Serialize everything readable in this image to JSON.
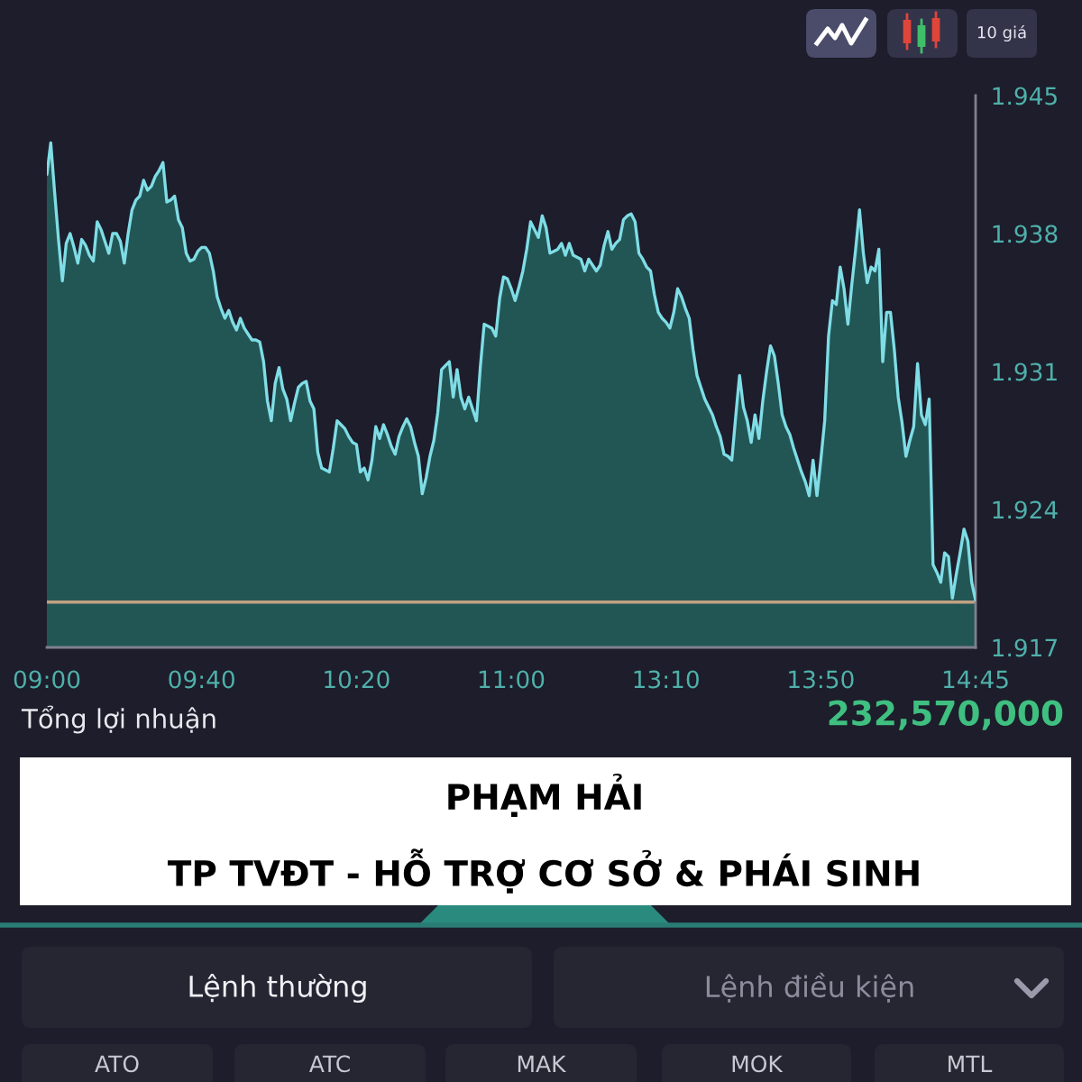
{
  "chart_data": {
    "type": "area",
    "categories": [
      "09:00",
      null,
      null,
      null,
      null,
      null,
      null,
      null,
      null,
      null,
      null,
      null,
      null,
      null,
      null,
      null,
      null,
      null,
      null,
      null,
      null,
      null,
      null,
      null,
      null,
      null,
      null,
      null,
      null,
      null,
      null,
      null,
      null,
      null,
      null,
      null,
      null,
      null,
      null,
      null,
      "09:40",
      null,
      null,
      null,
      null,
      null,
      null,
      null,
      null,
      null,
      null,
      null,
      null,
      null,
      null,
      null,
      null,
      null,
      null,
      null,
      null,
      null,
      null,
      null,
      null,
      null,
      null,
      null,
      null,
      null,
      null,
      null,
      null,
      null,
      null,
      null,
      null,
      null,
      null,
      null,
      "10:20",
      null,
      null,
      null,
      null,
      null,
      null,
      null,
      null,
      null,
      null,
      null,
      null,
      null,
      null,
      null,
      null,
      null,
      null,
      null,
      null,
      null,
      null,
      null,
      null,
      null,
      null,
      null,
      null,
      null,
      null,
      null,
      null,
      null,
      null,
      null,
      null,
      null,
      null,
      null,
      "11:00",
      null,
      null,
      null,
      null,
      null,
      null,
      null,
      null,
      null,
      null,
      null,
      null,
      null,
      null,
      null,
      null,
      null,
      null,
      null,
      null,
      null,
      null,
      null,
      null,
      null,
      null,
      null,
      null,
      null,
      null,
      null,
      null,
      null,
      null,
      null,
      null,
      null,
      null,
      null,
      "13:10",
      null,
      null,
      null,
      null,
      null,
      null,
      null,
      null,
      null,
      null,
      null,
      null,
      null,
      null,
      null,
      null,
      null,
      null,
      null,
      null,
      null,
      null,
      null,
      null,
      null,
      null,
      null,
      null,
      null,
      null,
      null,
      null,
      null,
      null,
      null,
      null,
      null,
      null,
      null,
      "13:50",
      null,
      null,
      null,
      null,
      null,
      null,
      null,
      null,
      null,
      null,
      null,
      null,
      null,
      null,
      null,
      null,
      null,
      null,
      null,
      null,
      null,
      null,
      null,
      null,
      null,
      null,
      null,
      null,
      null,
      null,
      null,
      null,
      null,
      null,
      null,
      null,
      null,
      null,
      null,
      "14:45"
    ],
    "ylim": [
      1.917,
      1.945
    ],
    "yticks": [
      1.917,
      1.924,
      1.931,
      1.938,
      1.945
    ],
    "series": [
      {
        "color": "#7fdde6",
        "values": [
          1.941,
          1.9426,
          1.9401,
          1.9377,
          1.9356,
          1.9375,
          1.938,
          1.9373,
          1.9365,
          1.9377,
          1.9374,
          1.9369,
          1.9366,
          1.9386,
          1.9382,
          1.9376,
          1.937,
          1.938,
          1.938,
          1.9376,
          1.9365,
          1.938,
          1.9392,
          1.9397,
          1.9399,
          1.9407,
          1.9402,
          1.9404,
          1.9409,
          1.9412,
          1.9416,
          1.9396,
          1.9397,
          1.9399,
          1.9387,
          1.9383,
          1.937,
          1.9366,
          1.9367,
          1.9371,
          1.9373,
          1.9373,
          1.937,
          1.9361,
          1.9348,
          1.9342,
          1.9337,
          1.9341,
          1.9335,
          1.9331,
          1.9337,
          1.9332,
          1.9329,
          1.9326,
          1.9326,
          1.9325,
          1.9315,
          1.9295,
          1.9285,
          1.9304,
          1.9312,
          1.9301,
          1.9296,
          1.9285,
          1.9294,
          1.9302,
          1.9304,
          1.9305,
          1.9295,
          1.9291,
          1.9269,
          1.9261,
          1.926,
          1.9259,
          1.9271,
          1.9285,
          1.9283,
          1.9281,
          1.9277,
          1.9274,
          1.9273,
          1.9259,
          1.9261,
          1.9255,
          1.9265,
          1.9282,
          1.9276,
          1.9283,
          1.9278,
          1.9272,
          1.9268,
          1.9277,
          1.9282,
          1.9286,
          1.9282,
          1.9274,
          1.9267,
          1.9248,
          1.9256,
          1.9267,
          1.9275,
          1.9289,
          1.9311,
          1.9313,
          1.9315,
          1.9297,
          1.9311,
          1.9297,
          1.9291,
          1.9297,
          1.9291,
          1.9285,
          1.9312,
          1.9334,
          1.9333,
          1.9332,
          1.9328,
          1.9347,
          1.9358,
          1.9357,
          1.9352,
          1.9346,
          1.9353,
          1.9361,
          1.9372,
          1.9386,
          1.9382,
          1.9378,
          1.9389,
          1.9383,
          1.937,
          1.9371,
          1.9372,
          1.9375,
          1.9369,
          1.9375,
          1.9369,
          1.9368,
          1.9367,
          1.9361,
          1.9367,
          1.9364,
          1.9361,
          1.9364,
          1.9374,
          1.9381,
          1.9372,
          1.9375,
          1.9377,
          1.9387,
          1.9389,
          1.939,
          1.9386,
          1.937,
          1.9367,
          1.9363,
          1.9361,
          1.9349,
          1.934,
          1.9337,
          1.9335,
          1.9332,
          1.934,
          1.9352,
          1.9348,
          1.9342,
          1.9337,
          1.9321,
          1.9308,
          1.9302,
          1.9296,
          1.9292,
          1.9288,
          1.9282,
          1.9277,
          1.9268,
          1.9267,
          1.9265,
          1.9287,
          1.9308,
          1.9292,
          1.9285,
          1.9274,
          1.9288,
          1.9276,
          1.9295,
          1.931,
          1.9323,
          1.9318,
          1.9304,
          1.9288,
          1.9282,
          1.9278,
          1.9271,
          1.9265,
          1.9259,
          1.9254,
          1.9247,
          1.9265,
          1.9247,
          1.9265,
          1.9285,
          1.9328,
          1.9346,
          1.9344,
          1.9363,
          1.9352,
          1.9334,
          1.9354,
          1.9372,
          1.9392,
          1.937,
          1.9355,
          1.9363,
          1.9361,
          1.9372,
          1.9315,
          1.934,
          1.934,
          1.9321,
          1.9297,
          1.9284,
          1.9267,
          1.9275,
          1.9282,
          1.9314,
          1.9288,
          1.9283,
          1.9296,
          1.9212,
          1.9208,
          1.9203,
          1.9218,
          1.9216,
          1.9195,
          1.9207,
          1.9218,
          1.923,
          1.9224,
          1.9203,
          1.9194
        ]
      }
    ],
    "ref_lines": [
      {
        "axis": "y",
        "value": 1.9193,
        "color": "#c2a183"
      }
    ],
    "annotations": [
      "10 giá",
      "Tổng lợi nhuận",
      "232,570,000",
      "PHẠM HẢI",
      "TP TVĐT - HỖ TRỢ CƠ SỞ & PHÁI SINH",
      "Lệnh thường",
      "Lệnh điều kiện",
      "ATO",
      "ATC",
      "MAK",
      "MOK",
      "MTL"
    ]
  }
}
